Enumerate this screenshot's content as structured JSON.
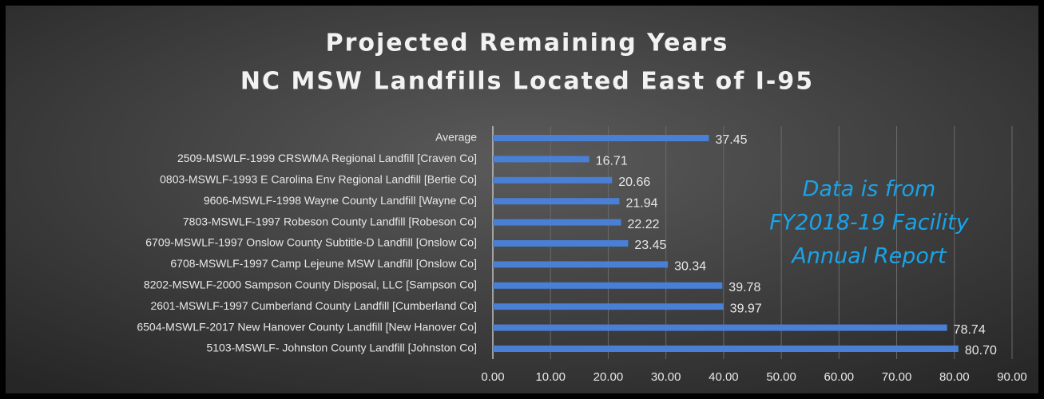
{
  "chart_data": {
    "type": "bar",
    "orientation": "horizontal",
    "title": [
      "Projected Remaining Years",
      "NC MSW Landfills Located East of I-95"
    ],
    "annotation": [
      "Data is from",
      "FY2018-19 Facility",
      "Annual Report"
    ],
    "categories": [
      "Average",
      "2509-MSWLF-1999 CRSWMA Regional Landfill [Craven Co]",
      "0803-MSWLF-1993 E Carolina Env Regional Landfill [Bertie Co]",
      "9606-MSWLF-1998 Wayne County Landfill [Wayne Co]",
      "7803-MSWLF-1997 Robeson County Landfill [Robeson Co]",
      "6709-MSWLF-1997 Onslow County Subtitle-D Landfill [Onslow Co]",
      "6708-MSWLF-1997 Camp Lejeune MSW Landfill [Onslow Co]",
      "8202-MSWLF-2000 Sampson County Disposal, LLC [Sampson Co]",
      "2601-MSWLF-1997 Cumberland County Landfill [Cumberland Co]",
      "6504-MSWLF-2017 New Hanover County Landfill [New Hanover Co]",
      "5103-MSWLF- Johnston County Landfill [Johnston Co]"
    ],
    "values": [
      37.45,
      16.71,
      20.66,
      21.94,
      22.22,
      23.45,
      30.34,
      39.78,
      39.97,
      78.74,
      80.7
    ],
    "value_labels": [
      "37.45",
      "16.71",
      "20.66",
      "21.94",
      "22.22",
      "23.45",
      "30.34",
      "39.78",
      "39.97",
      "78.74",
      "80.70"
    ],
    "color": "#4a7fd6",
    "xlim": [
      0,
      90
    ],
    "xticks": [
      {
        "value": 0,
        "label": "0.00"
      },
      {
        "value": 10,
        "label": "10.00"
      },
      {
        "value": 20,
        "label": "20.00"
      },
      {
        "value": 30,
        "label": "30.00"
      },
      {
        "value": 40,
        "label": "40.00"
      },
      {
        "value": 50,
        "label": "50.00"
      },
      {
        "value": 60,
        "label": "60.00"
      },
      {
        "value": 70,
        "label": "70.00"
      },
      {
        "value": 80,
        "label": "80.00"
      },
      {
        "value": 90,
        "label": "90.00"
      }
    ],
    "grid": true
  }
}
